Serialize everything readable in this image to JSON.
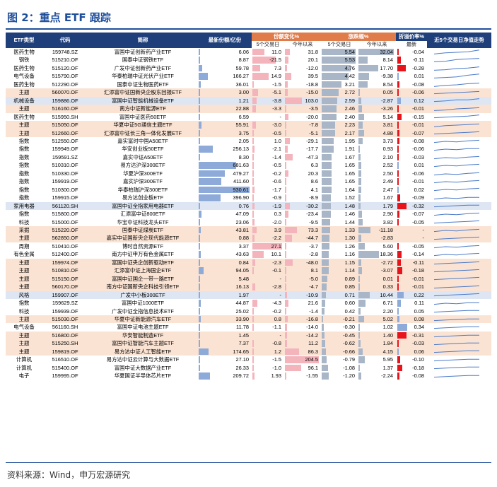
{
  "title": "图 2：重点 ETF 跟踪",
  "source": "资料来源：Wind，申万宏源研究",
  "headers": {
    "type": "ETF类型",
    "code": "代码",
    "name": "简称",
    "share": "最新份额/亿份",
    "share_change": "份额变化%",
    "change_5d": "5个交易日",
    "change_ytd": "今年以来",
    "price_change": "涨跌幅%",
    "price_5d": "5个交易日",
    "price_ytd": "今年以来",
    "discount": "折溢价率%",
    "discount_latest": "最新",
    "nav_trend": "近5个交易日净值走势"
  },
  "colors": {
    "header_blue": "#1f3f7a",
    "header_orange": "#e07b4a",
    "row_peach": "#fbe3d3",
    "row_blue": "#dde6f2",
    "bar_blue": "#8eaad8",
    "bar_pink": "#f4b4bc",
    "bar_red": "#e8141c",
    "spark": "#4a7ac8"
  },
  "rows": [
    {
      "type": "医药生物",
      "code": "159748.SZ",
      "name": "富国中证创新药产业ETF",
      "share": "6.06",
      "sc5": "11.0",
      "scy": "31.8",
      "pc5": "5.54",
      "pcy": "32.04",
      "disc": "-0.04",
      "bg": "white",
      "share_v": 6.06,
      "sc5_v": 11.0,
      "scy_v": 31.8,
      "pc5_v": 5.54,
      "pcy_v": 32.04,
      "disc_v": -0.04,
      "spark": [
        0.2,
        0.4,
        0.5,
        0.6,
        0.9
      ]
    },
    {
      "type": "钢铁",
      "code": "515210.OF",
      "name": "国泰中证钢铁ETF",
      "share": "8.87",
      "sc5": "-21.5",
      "scy": "20.1",
      "pc5": "5.53",
      "pcy": "8.14",
      "disc": "-0.11",
      "bg": "white",
      "share_v": 8.87,
      "sc5_v": -21.5,
      "scy_v": 20.1,
      "pc5_v": 5.53,
      "pcy_v": 8.14,
      "disc_v": -0.11,
      "spark": [
        0.2,
        0.3,
        0.6,
        0.7,
        0.8
      ]
    },
    {
      "type": "医药生物",
      "code": "515120.OF",
      "name": "广发中证创新药产业ETF",
      "share": "59.78",
      "sc5": "7.3",
      "scy": "-12.0",
      "pc5": "4.76",
      "pcy": "17.70",
      "disc": "-0.28",
      "bg": "white",
      "share_v": 59.78,
      "sc5_v": 7.3,
      "scy_v": -12.0,
      "pc5_v": 4.76,
      "pcy_v": 17.7,
      "disc_v": -0.28,
      "spark": [
        0.2,
        0.3,
        0.5,
        0.6,
        0.8
      ]
    },
    {
      "type": "电气设备",
      "code": "515790.OF",
      "name": "华泰柏瑞中证光伏产业ETF",
      "share": "166.27",
      "sc5": "14.9",
      "scy": "39.5",
      "pc5": "4.42",
      "pcy": "-9.38",
      "disc": "0.01",
      "bg": "white",
      "share_v": 166.27,
      "sc5_v": 14.9,
      "scy_v": 39.5,
      "pc5_v": 4.42,
      "pcy_v": -9.38,
      "disc_v": 0.01,
      "spark": [
        0.2,
        0.3,
        0.4,
        0.7,
        0.9
      ]
    },
    {
      "type": "医药生物",
      "code": "512290.OF",
      "name": "国泰中证生物医药ETF",
      "share": "36.01",
      "sc5": "-1.5",
      "scy": "-18.8",
      "pc5": "3.21",
      "pcy": "8.54",
      "disc": "-0.08",
      "bg": "white",
      "share_v": 36.01,
      "sc5_v": -1.5,
      "scy_v": -18.8,
      "pc5_v": 3.21,
      "pcy_v": 8.54,
      "disc_v": -0.08,
      "spark": [
        0.2,
        0.4,
        0.5,
        0.7,
        0.8
      ]
    },
    {
      "type": "主题",
      "code": "560070.OF",
      "name": "汇添富中证国新央企股东回报ETF",
      "share": "3.00",
      "sc5": "-5.1",
      "scy": "-15.0",
      "pc5": "2.72",
      "pcy": "0.05",
      "disc": "-0.06",
      "bg": "peach",
      "share_v": 3.0,
      "sc5_v": -5.1,
      "scy_v": -15.0,
      "pc5_v": 2.72,
      "pcy_v": 0.05,
      "disc_v": -0.06,
      "spark": [
        0.3,
        0.4,
        0.5,
        0.6,
        0.7
      ]
    },
    {
      "type": "机械设备",
      "code": "159886.OF",
      "name": "富国中证智能机械设备ETF",
      "share": "1.21",
      "sc5": "-3.8",
      "scy": "103.0",
      "pc5": "2.59",
      "pcy": "-2.87",
      "disc": "0.12",
      "bg": "blue",
      "share_v": 1.21,
      "sc5_v": -3.8,
      "scy_v": 103.0,
      "pc5_v": 2.59,
      "pcy_v": -2.87,
      "disc_v": 0.12,
      "spark": [
        0.3,
        0.4,
        0.6,
        0.6,
        0.8
      ]
    },
    {
      "type": "主题",
      "code": "516160.OF",
      "name": "南方中证新能源ETF",
      "share": "22.88",
      "sc5": "-3.3",
      "scy": "-3.5",
      "pc5": "2.46",
      "pcy": "-3.26",
      "disc": "-0.01",
      "bg": "peach",
      "share_v": 22.88,
      "sc5_v": -3.3,
      "scy_v": -3.5,
      "pc5_v": 2.46,
      "pcy_v": -3.26,
      "disc_v": -0.01,
      "spark": [
        0.2,
        0.3,
        0.5,
        0.6,
        0.7
      ]
    },
    {
      "type": "医药生物",
      "code": "515950.SH",
      "name": "富国中证医药50ETF",
      "share": "6.59",
      "sc5": "-",
      "scy": "-20.0",
      "pc5": "2.40",
      "pcy": "5.14",
      "disc": "-0.15",
      "bg": "white",
      "share_v": 6.59,
      "sc5_v": 0,
      "scy_v": -20.0,
      "pc5_v": 2.4,
      "pcy_v": 5.14,
      "disc_v": -0.15,
      "spark": [
        0.3,
        0.4,
        0.5,
        0.6,
        0.8
      ]
    },
    {
      "type": "主题",
      "code": "515050.OF",
      "name": "华夏中证5G通信主题ETF",
      "share": "55.91",
      "sc5": "-3.0",
      "scy": "-7.8",
      "pc5": "2.23",
      "pcy": "3.81",
      "disc": "-0.01",
      "bg": "peach",
      "share_v": 55.91,
      "sc5_v": -3.0,
      "scy_v": -7.8,
      "pc5_v": 2.23,
      "pcy_v": 3.81,
      "disc_v": -0.01,
      "spark": [
        0.2,
        0.4,
        0.5,
        0.6,
        0.7
      ]
    },
    {
      "type": "主题",
      "code": "512660.OF",
      "name": "汇添富中证长三角一体化发展ETF",
      "share": "3.75",
      "sc5": "-0.5",
      "scy": "-5.1",
      "pc5": "2.17",
      "pcy": "4.88",
      "disc": "-0.07",
      "bg": "peach",
      "share_v": 3.75,
      "sc5_v": -0.5,
      "scy_v": -5.1,
      "pc5_v": 2.17,
      "pcy_v": 4.88,
      "disc_v": -0.07,
      "spark": [
        0.3,
        0.4,
        0.5,
        0.6,
        0.7
      ]
    },
    {
      "type": "指数",
      "code": "512550.OF",
      "name": "嘉实富时中国A50ETF",
      "share": "2.05",
      "sc5": "1.0",
      "scy": "-29.1",
      "pc5": "1.95",
      "pcy": "3.73",
      "disc": "-0.08",
      "bg": "white",
      "share_v": 2.05,
      "sc5_v": 1.0,
      "scy_v": -29.1,
      "pc5_v": 1.95,
      "pcy_v": 3.73,
      "disc_v": -0.08,
      "spark": [
        0.3,
        0.5,
        0.4,
        0.6,
        0.7
      ]
    },
    {
      "type": "指数",
      "code": "159949.OF",
      "name": "华安创业板50ETF",
      "share": "256.13",
      "sc5": "-2.1",
      "scy": "-17.7",
      "pc5": "1.91",
      "pcy": "0.93",
      "disc": "-0.06",
      "bg": "white",
      "share_v": 256.13,
      "sc5_v": -2.1,
      "scy_v": -17.7,
      "pc5_v": 1.91,
      "pcy_v": 0.93,
      "disc_v": -0.06,
      "spark": [
        0.3,
        0.5,
        0.4,
        0.6,
        0.6
      ]
    },
    {
      "type": "指数",
      "code": "159591.SZ",
      "name": "嘉实中证A50ETF",
      "share": "8.30",
      "sc5": "-1.4",
      "scy": "-47.3",
      "pc5": "1.67",
      "pcy": "2.10",
      "disc": "-0.03",
      "bg": "white",
      "share_v": 8.3,
      "sc5_v": -1.4,
      "scy_v": -47.3,
      "pc5_v": 1.67,
      "pcy_v": 2.1,
      "disc_v": -0.03,
      "spark": [
        0.3,
        0.5,
        0.4,
        0.6,
        0.7
      ]
    },
    {
      "type": "指数",
      "code": "510310.OF",
      "name": "易方达沪深300ETF",
      "share": "681.63",
      "sc5": "-0.5",
      "scy": "6.3",
      "pc5": "1.65",
      "pcy": "2.52",
      "disc": "0.01",
      "bg": "white",
      "share_v": 681.63,
      "sc5_v": -0.5,
      "scy_v": 6.3,
      "pc5_v": 1.65,
      "pcy_v": 2.52,
      "disc_v": 0.01,
      "spark": [
        0.3,
        0.5,
        0.4,
        0.6,
        0.7
      ]
    },
    {
      "type": "指数",
      "code": "510330.OF",
      "name": "华夏沪深300ETF",
      "share": "479.27",
      "sc5": "-0.2",
      "scy": "20.3",
      "pc5": "1.65",
      "pcy": "2.50",
      "disc": "-0.06",
      "bg": "white",
      "share_v": 479.27,
      "sc5_v": -0.2,
      "scy_v": 20.3,
      "pc5_v": 1.65,
      "pcy_v": 2.5,
      "disc_v": -0.06,
      "spark": [
        0.3,
        0.5,
        0.4,
        0.6,
        0.7
      ]
    },
    {
      "type": "指数",
      "code": "159919.OF",
      "name": "嘉实沪深300ETF",
      "share": "411.60",
      "sc5": "-0.6",
      "scy": "8.6",
      "pc5": "1.65",
      "pcy": "2.49",
      "disc": "-0.01",
      "bg": "white",
      "share_v": 411.6,
      "sc5_v": -0.6,
      "scy_v": 8.6,
      "pc5_v": 1.65,
      "pcy_v": 2.49,
      "disc_v": -0.01,
      "spark": [
        0.3,
        0.5,
        0.4,
        0.6,
        0.7
      ]
    },
    {
      "type": "指数",
      "code": "510300.OF",
      "name": "华泰柏瑞沪深300ETF",
      "share": "930.61",
      "sc5": "-1.7",
      "scy": "4.1",
      "pc5": "1.64",
      "pcy": "2.47",
      "disc": "0.02",
      "bg": "white",
      "share_v": 930.61,
      "sc5_v": -1.7,
      "scy_v": 4.1,
      "pc5_v": 1.64,
      "pcy_v": 2.47,
      "disc_v": 0.02,
      "spark": [
        0.3,
        0.5,
        0.4,
        0.6,
        0.7
      ]
    },
    {
      "type": "指数",
      "code": "159915.OF",
      "name": "易方达创业板ETF",
      "share": "396.90",
      "sc5": "-0.9",
      "scy": "-8.9",
      "pc5": "1.52",
      "pcy": "1.67",
      "disc": "-0.09",
      "bg": "white",
      "share_v": 396.9,
      "sc5_v": -0.9,
      "scy_v": -8.9,
      "pc5_v": 1.52,
      "pcy_v": 1.67,
      "disc_v": -0.09,
      "spark": [
        0.3,
        0.5,
        0.4,
        0.6,
        0.6
      ]
    },
    {
      "type": "家用电器",
      "code": "561120.SH",
      "name": "富国中证全指家用电器ETF",
      "share": "0.76",
      "sc5": "-1.9",
      "scy": "-30.2",
      "pc5": "1.48",
      "pcy": "1.79",
      "disc": "-0.32",
      "bg": "blue",
      "share_v": 0.76,
      "sc5_v": -1.9,
      "scy_v": -30.2,
      "pc5_v": 1.48,
      "pcy_v": 1.79,
      "disc_v": -0.32,
      "spark": [
        0.3,
        0.4,
        0.5,
        0.6,
        0.6
      ]
    },
    {
      "type": "指数",
      "code": "515800.OF",
      "name": "汇添富中证800ETF",
      "share": "47.09",
      "sc5": "0.3",
      "scy": "-23.4",
      "pc5": "1.46",
      "pcy": "2.90",
      "disc": "-0.07",
      "bg": "white",
      "share_v": 47.09,
      "sc5_v": 0.3,
      "scy_v": -23.4,
      "pc5_v": 1.46,
      "pcy_v": 2.9,
      "disc_v": -0.07,
      "spark": [
        0.3,
        0.5,
        0.4,
        0.6,
        0.7
      ]
    },
    {
      "type": "科技",
      "code": "515000.OF",
      "name": "华宝中证科技龙头ETF",
      "share": "23.06",
      "sc5": "-2.0",
      "scy": "-9.5",
      "pc5": "1.44",
      "pcy": "3.82",
      "disc": "-0.05",
      "bg": "white",
      "share_v": 23.06,
      "sc5_v": -2.0,
      "scy_v": -9.5,
      "pc5_v": 1.44,
      "pcy_v": 3.82,
      "disc_v": -0.05,
      "spark": [
        0.3,
        0.4,
        0.5,
        0.6,
        0.7
      ]
    },
    {
      "type": "采掘",
      "code": "515220.OF",
      "name": "国泰中证煤炭ETF",
      "share": "43.81",
      "sc5": "3.9",
      "scy": "73.3",
      "pc5": "1.33",
      "pcy": "-11.18",
      "disc": "-",
      "bg": "peach",
      "share_v": 43.81,
      "sc5_v": 3.9,
      "scy_v": 73.3,
      "pc5_v": 1.33,
      "pcy_v": -11.18,
      "disc_v": 0,
      "spark": [
        0.3,
        0.5,
        0.4,
        0.6,
        0.7
      ]
    },
    {
      "type": "主题",
      "code": "562850.OF",
      "name": "嘉实中证国新央企现代能源ETF",
      "share": "0.88",
      "sc5": "-2.2",
      "scy": "-44.7",
      "pc5": "1.30",
      "pcy": "-2.83",
      "disc": "-",
      "bg": "peach",
      "share_v": 0.88,
      "sc5_v": -2.2,
      "scy_v": -44.7,
      "pc5_v": 1.3,
      "pcy_v": -2.83,
      "disc_v": 0,
      "spark": [
        0.3,
        0.4,
        0.5,
        0.6,
        0.7
      ]
    },
    {
      "type": "周期",
      "code": "510410.OF",
      "name": "博时自然资源ETF",
      "share": "3.37",
      "sc5": "27.1",
      "scy": "-3.7",
      "pc5": "1.26",
      "pcy": "5.60",
      "disc": "-0.05",
      "bg": "white",
      "share_v": 3.37,
      "sc5_v": 27.1,
      "scy_v": -3.7,
      "pc5_v": 1.26,
      "pcy_v": 5.6,
      "disc_v": -0.05,
      "spark": [
        0.3,
        0.5,
        0.4,
        0.6,
        0.7
      ]
    },
    {
      "type": "有色金属",
      "code": "512400.OF",
      "name": "南方中证申万有色金属ETF",
      "share": "43.63",
      "sc5": "10.1",
      "scy": "-2.8",
      "pc5": "1.16",
      "pcy": "18.36",
      "disc": "-0.14",
      "bg": "white",
      "share_v": 43.63,
      "sc5_v": 10.1,
      "scy_v": -2.8,
      "pc5_v": 1.16,
      "pcy_v": 18.36,
      "disc_v": -0.14,
      "spark": [
        0.3,
        0.5,
        0.4,
        0.6,
        0.7
      ]
    },
    {
      "type": "主题",
      "code": "159974.OF",
      "name": "富国中证央企创新驱动ETF",
      "share": "0.84",
      "sc5": "-2.3",
      "scy": "-48.0",
      "pc5": "1.15",
      "pcy": "-2.72",
      "disc": "-0.11",
      "bg": "peach",
      "share_v": 0.84,
      "sc5_v": -2.3,
      "scy_v": -48.0,
      "pc5_v": 1.15,
      "pcy_v": -2.72,
      "disc_v": -0.11,
      "spark": [
        0.3,
        0.4,
        0.5,
        0.6,
        0.7
      ]
    },
    {
      "type": "主题",
      "code": "510810.OF",
      "name": "汇添富中证上海国企ETF",
      "share": "94.05",
      "sc5": "-0.1",
      "scy": "8.1",
      "pc5": "1.14",
      "pcy": "-3.07",
      "disc": "-0.18",
      "bg": "peach",
      "share_v": 94.05,
      "sc5_v": -0.1,
      "scy_v": 8.1,
      "pc5_v": 1.14,
      "pcy_v": -3.07,
      "disc_v": -0.18,
      "spark": [
        0.3,
        0.4,
        0.5,
        0.6,
        0.7
      ]
    },
    {
      "type": "主题",
      "code": "515150.OF",
      "name": "富国中证国企一带一路ETF",
      "share": "5.48",
      "sc5": "-",
      "scy": "-5.0",
      "pc5": "0.89",
      "pcy": "0.01",
      "disc": "-0.01",
      "bg": "peach",
      "share_v": 5.48,
      "sc5_v": 0,
      "scy_v": -5.0,
      "pc5_v": 0.89,
      "pcy_v": 0.01,
      "disc_v": -0.01,
      "spark": [
        0.3,
        0.4,
        0.5,
        0.6,
        0.7
      ]
    },
    {
      "type": "主题",
      "code": "560170.OF",
      "name": "南方中证国新央企科技引领ETF",
      "share": "16.13",
      "sc5": "-2.8",
      "scy": "-4.7",
      "pc5": "0.85",
      "pcy": "0.33",
      "disc": "-0.01",
      "bg": "peach",
      "share_v": 16.13,
      "sc5_v": -2.8,
      "scy_v": -4.7,
      "pc5_v": 0.85,
      "pcy_v": 0.33,
      "disc_v": -0.01,
      "spark": [
        0.3,
        0.4,
        0.5,
        0.6,
        0.7
      ]
    },
    {
      "type": "风格",
      "code": "159907.OF",
      "name": "广发中小板300ETF",
      "share": "1.97",
      "sc5": "-",
      "scy": "-10.9",
      "pc5": "0.71",
      "pcy": "10.44",
      "disc": "0.22",
      "bg": "blue",
      "share_v": 1.97,
      "sc5_v": 0,
      "scy_v": -10.9,
      "pc5_v": 0.71,
      "pcy_v": 10.44,
      "disc_v": 0.22,
      "spark": [
        0.3,
        0.4,
        0.5,
        0.6,
        0.7
      ]
    },
    {
      "type": "指数",
      "code": "159629.SZ",
      "name": "富国中证1000ETF",
      "share": "44.87",
      "sc5": "-4.3",
      "scy": "21.6",
      "pc5": "0.60",
      "pcy": "6.71",
      "disc": "0.11",
      "bg": "white",
      "share_v": 44.87,
      "sc5_v": -4.3,
      "scy_v": 21.6,
      "pc5_v": 0.6,
      "pcy_v": 6.71,
      "disc_v": 0.11,
      "spark": [
        0.3,
        0.5,
        0.4,
        0.6,
        0.6
      ]
    },
    {
      "type": "科技",
      "code": "159939.OF",
      "name": "广发中证全指信息技术ETF",
      "share": "25.02",
      "sc5": "-0.2",
      "scy": "-1.4",
      "pc5": "0.42",
      "pcy": "2.20",
      "disc": "0.05",
      "bg": "white",
      "share_v": 25.02,
      "sc5_v": -0.2,
      "scy_v": -1.4,
      "pc5_v": 0.42,
      "pcy_v": 2.2,
      "disc_v": 0.05,
      "spark": [
        0.3,
        0.4,
        0.5,
        0.6,
        0.6
      ]
    },
    {
      "type": "主题",
      "code": "515030.OF",
      "name": "华夏中证新能源汽车ETF",
      "share": "33.90",
      "sc5": "0.8",
      "scy": "-16.8",
      "pc5": "-0.21",
      "pcy": "5.02",
      "disc": "0.08",
      "bg": "peach",
      "share_v": 33.9,
      "sc5_v": 0.8,
      "scy_v": -16.8,
      "pc5_v": -0.21,
      "pcy_v": 5.02,
      "disc_v": 0.08,
      "spark": [
        0.3,
        0.4,
        0.5,
        0.6,
        0.6
      ]
    },
    {
      "type": "电气设备",
      "code": "561160.SH",
      "name": "富国中证电池主题ETF",
      "share": "11.78",
      "sc5": "-1.1",
      "scy": "-14.0",
      "pc5": "-0.30",
      "pcy": "1.02",
      "disc": "0.34",
      "bg": "white",
      "share_v": 11.78,
      "sc5_v": -1.1,
      "scy_v": -14.0,
      "pc5_v": -0.3,
      "pcy_v": 1.02,
      "disc_v": 0.34,
      "spark": [
        0.3,
        0.4,
        0.5,
        0.6,
        0.6
      ]
    },
    {
      "type": "主题",
      "code": "516800.OF",
      "name": "华安智能制造ETF",
      "share": "1.45",
      "sc5": "-",
      "scy": "-14.2",
      "pc5": "-0.45",
      "pcy": "1.40",
      "disc": "-0.31",
      "bg": "peach",
      "share_v": 1.45,
      "sc5_v": 0,
      "scy_v": -14.2,
      "pc5_v": -0.45,
      "pcy_v": 1.4,
      "disc_v": -0.31,
      "spark": [
        0.3,
        0.4,
        0.5,
        0.6,
        0.6
      ]
    },
    {
      "type": "主题",
      "code": "515250.SH",
      "name": "富国中证智能汽车主题ETF",
      "share": "7.37",
      "sc5": "-0.8",
      "scy": "11.2",
      "pc5": "-0.62",
      "pcy": "1.84",
      "disc": "-0.03",
      "bg": "peach",
      "share_v": 7.37,
      "sc5_v": -0.8,
      "scy_v": 11.2,
      "pc5_v": -0.62,
      "pcy_v": 1.84,
      "disc_v": -0.03,
      "spark": [
        0.3,
        0.4,
        0.5,
        0.6,
        0.6
      ]
    },
    {
      "type": "主题",
      "code": "159819.OF",
      "name": "易方达中证人工智能ETF",
      "share": "174.65",
      "sc5": "1.2",
      "scy": "86.3",
      "pc5": "-0.66",
      "pcy": "4.15",
      "disc": "0.06",
      "bg": "peach",
      "share_v": 174.65,
      "sc5_v": 1.2,
      "scy_v": 86.3,
      "pc5_v": -0.66,
      "pcy_v": 4.15,
      "disc_v": 0.06,
      "spark": [
        0.3,
        0.4,
        0.5,
        0.6,
        0.6
      ]
    },
    {
      "type": "计算机",
      "code": "516510.OF",
      "name": "易方达中证云计算与大数据ETF",
      "share": "27.10",
      "sc5": "-1.5",
      "scy": "204.5",
      "pc5": "-0.79",
      "pcy": "5.95",
      "disc": "-0.10",
      "bg": "white",
      "share_v": 27.1,
      "sc5_v": -1.5,
      "scy_v": 204.5,
      "pc5_v": -0.79,
      "pcy_v": 5.95,
      "disc_v": -0.1,
      "spark": [
        0.3,
        0.4,
        0.5,
        0.6,
        0.6
      ]
    },
    {
      "type": "计算机",
      "code": "515400.OF",
      "name": "富国中证大数据产业ETF",
      "share": "26.33",
      "sc5": "-1.0",
      "scy": "96.1",
      "pc5": "-1.08",
      "pcy": "1.37",
      "disc": "-0.18",
      "bg": "white",
      "share_v": 26.33,
      "sc5_v": -1.0,
      "scy_v": 96.1,
      "pc5_v": -1.08,
      "pcy_v": 1.37,
      "disc_v": -0.18,
      "spark": [
        0.3,
        0.4,
        0.5,
        0.6,
        0.6
      ]
    },
    {
      "type": "电子",
      "code": "159995.OF",
      "name": "华夏国证半导体芯片ETF",
      "share": "209.72",
      "sc5": "1.93",
      "scy": "-1.55",
      "pc5": "-1.20",
      "pcy": "-2.24",
      "disc": "-0.08",
      "bg": "white",
      "share_v": 209.72,
      "sc5_v": 1.93,
      "scy_v": -1.55,
      "pc5_v": -1.2,
      "pcy_v": -2.24,
      "disc_v": -0.08,
      "spark": [
        0.3,
        0.4,
        0.5,
        0.6,
        0.6
      ]
    }
  ]
}
